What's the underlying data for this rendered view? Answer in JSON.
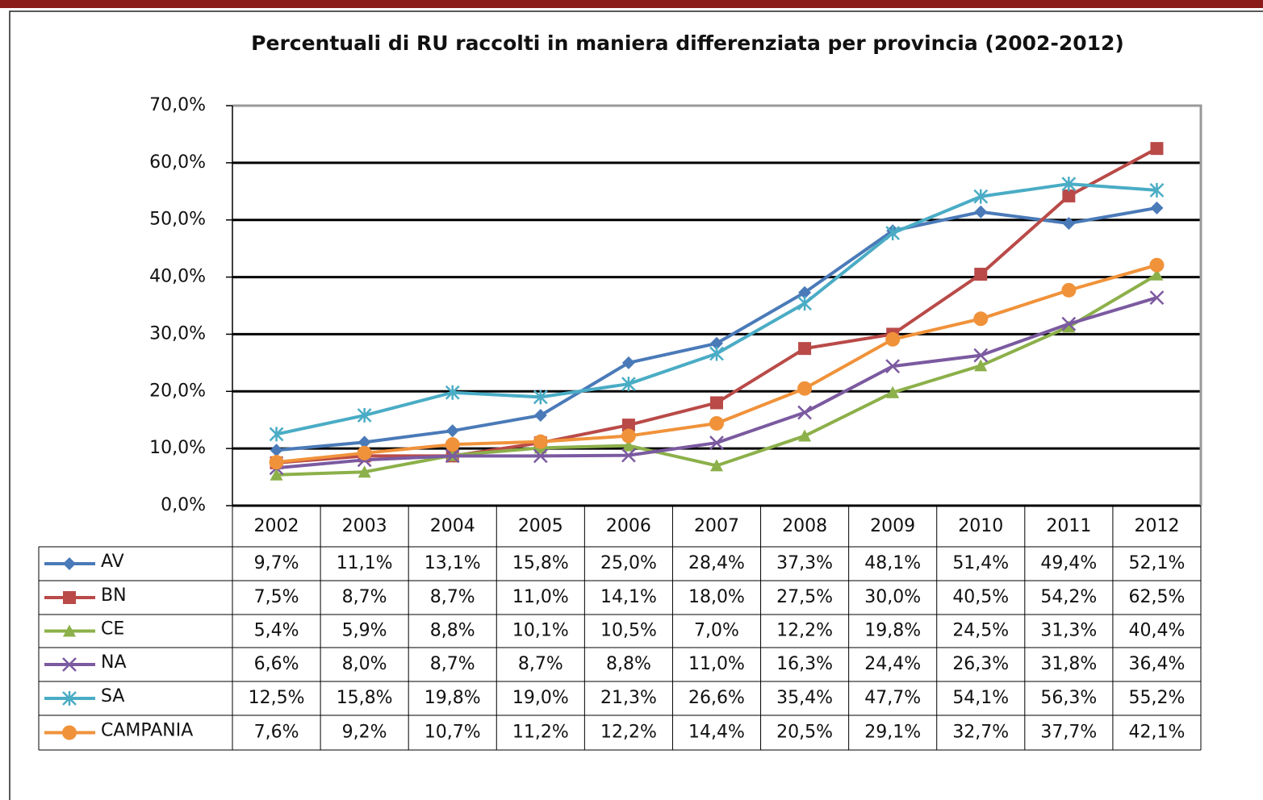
{
  "chart_data": {
    "type": "line",
    "title": "Percentuali di RU raccolti in maniera differenziata per provincia (2002-2012)",
    "categories": [
      "2002",
      "2003",
      "2004",
      "2005",
      "2006",
      "2007",
      "2008",
      "2009",
      "2010",
      "2011",
      "2012"
    ],
    "ylim": [
      0,
      70
    ],
    "yticks": [
      {
        "value": 0,
        "label": "0,0%"
      },
      {
        "value": 10,
        "label": "10,0%"
      },
      {
        "value": 20,
        "label": "20,0%"
      },
      {
        "value": 30,
        "label": "30,0%"
      },
      {
        "value": 40,
        "label": "40,0%"
      },
      {
        "value": 50,
        "label": "50,0%"
      },
      {
        "value": 60,
        "label": "60,0%"
      },
      {
        "value": 70,
        "label": "70,0%"
      }
    ],
    "grid": true,
    "series": [
      {
        "name": "AV",
        "color": "#4a7ab8",
        "marker": "diamond",
        "values": [
          9.7,
          11.1,
          13.1,
          15.8,
          25.0,
          28.4,
          37.3,
          48.1,
          51.4,
          49.4,
          52.1
        ],
        "value_labels": [
          "9,7%",
          "11,1%",
          "13,1%",
          "15,8%",
          "25,0%",
          "28,4%",
          "37,3%",
          "48,1%",
          "51,4%",
          "49,4%",
          "52,1%"
        ]
      },
      {
        "name": "BN",
        "color": "#b94a48",
        "marker": "square",
        "values": [
          7.5,
          8.7,
          8.7,
          11.0,
          14.1,
          18.0,
          27.5,
          30.0,
          40.5,
          54.2,
          62.5
        ],
        "value_labels": [
          "7,5%",
          "8,7%",
          "8,7%",
          "11,0%",
          "14,1%",
          "18,0%",
          "27,5%",
          "30,0%",
          "40,5%",
          "54,2%",
          "62,5%"
        ]
      },
      {
        "name": "CE",
        "color": "#8cb04a",
        "marker": "triangle",
        "values": [
          5.4,
          5.9,
          8.8,
          10.1,
          10.5,
          7.0,
          12.2,
          19.8,
          24.5,
          31.3,
          40.4
        ],
        "value_labels": [
          "5,4%",
          "5,9%",
          "8,8%",
          "10,1%",
          "10,5%",
          "7,0%",
          "12,2%",
          "19,8%",
          "24,5%",
          "31,3%",
          "40,4%"
        ]
      },
      {
        "name": "NA",
        "color": "#7b5aa0",
        "marker": "x",
        "values": [
          6.6,
          8.0,
          8.7,
          8.7,
          8.8,
          11.0,
          16.3,
          24.4,
          26.3,
          31.8,
          36.4
        ],
        "value_labels": [
          "6,6%",
          "8,0%",
          "8,7%",
          "8,7%",
          "8,8%",
          "11,0%",
          "16,3%",
          "24,4%",
          "26,3%",
          "31,8%",
          "36,4%"
        ]
      },
      {
        "name": "SA",
        "color": "#4aacc5",
        "marker": "star",
        "values": [
          12.5,
          15.8,
          19.8,
          19.0,
          21.3,
          26.6,
          35.4,
          47.7,
          54.1,
          56.3,
          55.2
        ],
        "value_labels": [
          "12,5%",
          "15,8%",
          "19,8%",
          "19,0%",
          "21,3%",
          "26,6%",
          "35,4%",
          "47,7%",
          "54,1%",
          "56,3%",
          "55,2%"
        ]
      },
      {
        "name": "CAMPANIA",
        "color": "#f0923a",
        "marker": "circle",
        "values": [
          7.6,
          9.2,
          10.7,
          11.2,
          12.2,
          14.4,
          20.5,
          29.1,
          32.7,
          37.7,
          42.1
        ],
        "value_labels": [
          "7,6%",
          "9,2%",
          "10,7%",
          "11,2%",
          "12,2%",
          "14,4%",
          "20,5%",
          "29,1%",
          "32,7%",
          "37,7%",
          "42,1%"
        ]
      }
    ]
  }
}
